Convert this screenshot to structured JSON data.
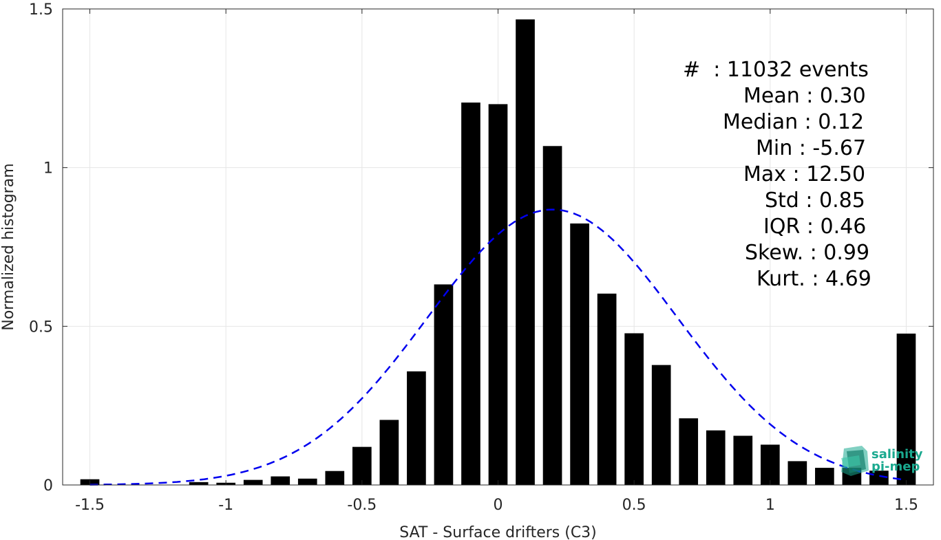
{
  "chart_data": {
    "type": "bar",
    "xlabel": "SAT - Surface drifters (C3)",
    "ylabel": "Normalized histogram",
    "xlim": [
      -1.6,
      1.6
    ],
    "ylim": [
      0,
      1.5
    ],
    "xticks": [
      "-1.5",
      "-1",
      "-0.5",
      "0",
      "0.5",
      "1",
      "1.5"
    ],
    "yticks": [
      "0",
      "0.5",
      "1",
      "1.5"
    ],
    "grid": true,
    "bar_color": "#000000",
    "fit_color": "#0000ee",
    "bins_x": [
      -1.5,
      -1.4,
      -1.3,
      -1.2,
      -1.1,
      -1.0,
      -0.9,
      -0.8,
      -0.7,
      -0.6,
      -0.5,
      -0.4,
      -0.3,
      -0.2,
      -0.1,
      0.0,
      0.1,
      0.2,
      0.3,
      0.4,
      0.5,
      0.6,
      0.7,
      0.8,
      0.9,
      1.0,
      1.1,
      1.2,
      1.3,
      1.4,
      1.5
    ],
    "values": [
      0.018,
      0.0,
      0.0,
      0.0,
      0.009,
      0.007,
      0.016,
      0.027,
      0.02,
      0.044,
      0.12,
      0.205,
      0.358,
      0.632,
      1.205,
      1.2,
      1.467,
      1.068,
      0.824,
      0.603,
      0.478,
      0.378,
      0.21,
      0.172,
      0.155,
      0.127,
      0.075,
      0.054,
      0.054,
      0.045,
      0.477
    ],
    "gaussian_fit": {
      "mean": 0.2,
      "std": 0.46,
      "peak": 0.868,
      "style": "dashed"
    },
    "stats": [
      {
        "text": "#  : 11032 events"
      },
      {
        "text": "Mean : 0.30"
      },
      {
        "text": "Median : 0.12"
      },
      {
        "text": "Min : -5.67"
      },
      {
        "text": "Max : 12.50"
      },
      {
        "text": "Std : 0.85"
      },
      {
        "text": "IQR : 0.46"
      },
      {
        "text": "Skew. : 0.99"
      },
      {
        "text": "Kurt. : 4.69"
      }
    ]
  },
  "logo": {
    "line1": "salinity",
    "line2": "pi-mep",
    "color": "#1aa98f"
  }
}
